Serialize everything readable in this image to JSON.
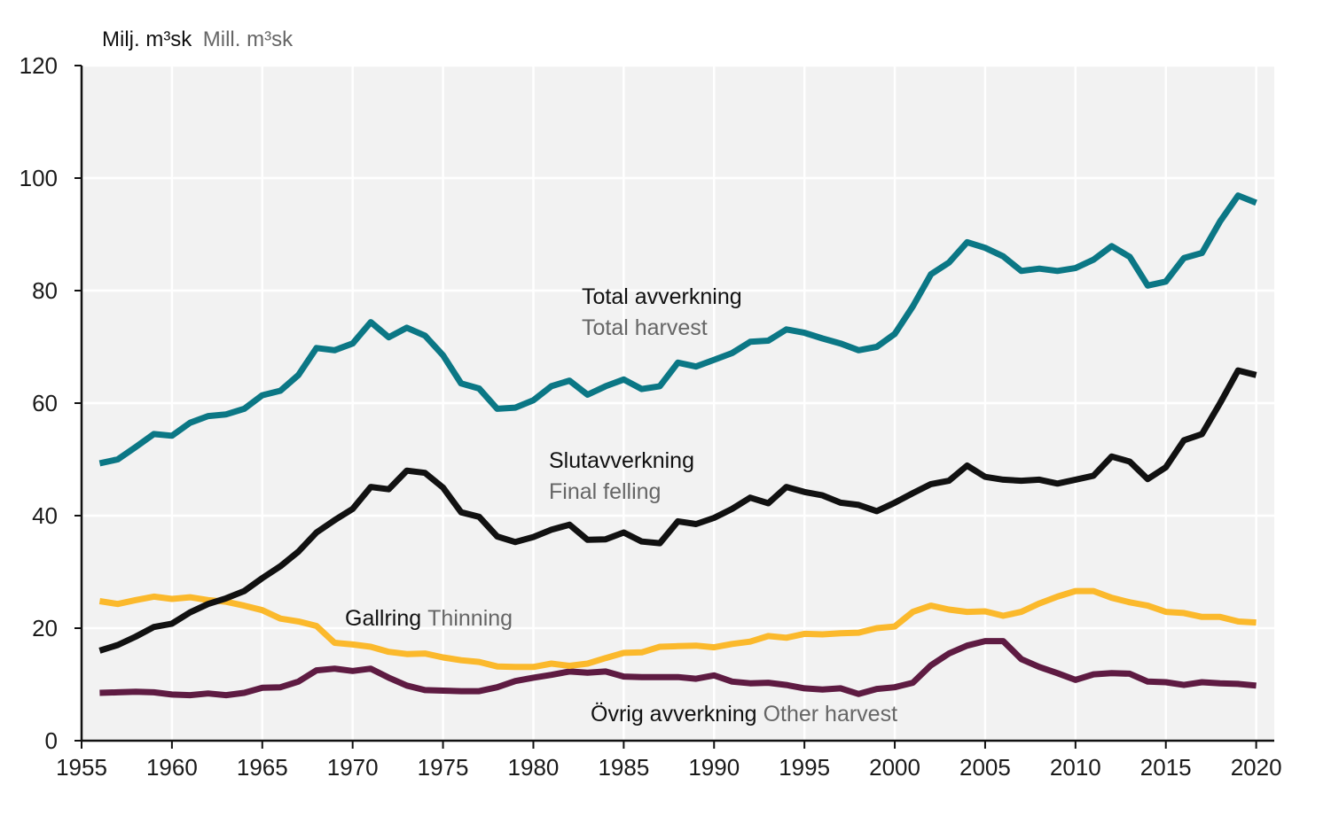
{
  "chart_data": {
    "type": "line",
    "ylabel": "Milj. m³sk",
    "ylabel_secondary": "Mill. m³sk",
    "xlim": [
      1955,
      2021
    ],
    "ylim": [
      0,
      120
    ],
    "x_ticks": [
      1955,
      1960,
      1965,
      1970,
      1975,
      1980,
      1985,
      1990,
      1995,
      2000,
      2005,
      2010,
      2015,
      2020
    ],
    "y_ticks": [
      0,
      20,
      40,
      60,
      80,
      100,
      120
    ],
    "grid": true,
    "background": "#f2f2f2",
    "x": [
      1956,
      1957,
      1958,
      1959,
      1960,
      1961,
      1962,
      1963,
      1964,
      1965,
      1966,
      1967,
      1968,
      1969,
      1970,
      1971,
      1972,
      1973,
      1974,
      1975,
      1976,
      1977,
      1978,
      1979,
      1980,
      1981,
      1982,
      1983,
      1984,
      1985,
      1986,
      1987,
      1988,
      1989,
      1990,
      1991,
      1992,
      1993,
      1994,
      1995,
      1996,
      1997,
      1998,
      1999,
      2000,
      2001,
      2002,
      2003,
      2004,
      2005,
      2006,
      2007,
      2008,
      2009,
      2010,
      2011,
      2012,
      2013,
      2014,
      2015,
      2016,
      2017,
      2018,
      2019,
      2020
    ],
    "series": [
      {
        "name": "Total avverkning",
        "name_secondary": "Total harvest",
        "color": "#0b7785",
        "values": [
          49.3,
          50.0,
          52.2,
          54.5,
          54.2,
          56.5,
          57.7,
          58.0,
          59.0,
          61.4,
          62.2,
          65.0,
          69.8,
          69.4,
          70.6,
          74.4,
          71.7,
          73.4,
          72.0,
          68.5,
          63.5,
          62.6,
          59.0,
          59.2,
          60.5,
          63.0,
          64.0,
          61.5,
          63.0,
          64.2,
          62.5,
          63.0,
          67.2,
          66.5,
          67.7,
          68.9,
          70.9,
          71.1,
          73.1,
          72.5,
          71.5,
          70.6,
          69.4,
          70.0,
          72.3,
          77.2,
          82.9,
          85.0,
          88.6,
          87.6,
          86.1,
          83.5,
          83.9,
          83.5,
          84.0,
          85.5,
          87.9,
          86.0,
          80.9,
          81.6,
          85.8,
          86.7,
          92.3,
          96.9,
          95.6
        ]
      },
      {
        "name": "Slutavverkning",
        "name_secondary": "Final felling",
        "color": "#111111",
        "values": [
          16.0,
          17.0,
          18.5,
          20.2,
          20.8,
          22.8,
          24.3,
          25.3,
          26.6,
          28.9,
          31.0,
          33.6,
          37.0,
          39.2,
          41.2,
          45.1,
          44.7,
          48.0,
          47.6,
          45.0,
          40.6,
          39.8,
          36.3,
          35.3,
          36.2,
          37.5,
          38.4,
          35.7,
          35.8,
          37.0,
          35.4,
          35.1,
          39.0,
          38.5,
          39.6,
          41.2,
          43.2,
          42.2,
          45.1,
          44.2,
          43.6,
          42.3,
          41.9,
          40.8,
          42.3,
          44.0,
          45.6,
          46.2,
          48.9,
          46.9,
          46.4,
          46.2,
          46.4,
          45.7,
          46.4,
          47.1,
          50.5,
          49.6,
          46.5,
          48.6,
          53.4,
          54.5,
          60.0,
          65.8,
          65.0
        ]
      },
      {
        "name": "Gallring",
        "name_secondary": "Thinning",
        "color": "#fbb92c",
        "values": [
          24.8,
          24.3,
          25.0,
          25.6,
          25.2,
          25.5,
          25.0,
          24.7,
          24.0,
          23.2,
          21.7,
          21.2,
          20.4,
          17.4,
          17.1,
          16.7,
          15.8,
          15.4,
          15.5,
          14.8,
          14.3,
          14.0,
          13.2,
          13.1,
          13.1,
          13.7,
          13.3,
          13.7,
          14.7,
          15.6,
          15.7,
          16.7,
          16.8,
          16.9,
          16.6,
          17.2,
          17.6,
          18.6,
          18.3,
          19.0,
          18.9,
          19.1,
          19.2,
          20.0,
          20.3,
          22.9,
          24.0,
          23.3,
          22.9,
          23.0,
          22.2,
          22.9,
          24.4,
          25.6,
          26.6,
          26.6,
          25.4,
          24.6,
          24.0,
          22.9,
          22.7,
          22.0,
          22.0,
          21.2,
          21.0
        ]
      },
      {
        "name": "Övrig avverkning",
        "name_secondary": "Other harvest",
        "color": "#5e1b42",
        "values": [
          8.5,
          8.6,
          8.7,
          8.6,
          8.2,
          8.1,
          8.4,
          8.1,
          8.5,
          9.4,
          9.5,
          10.5,
          12.5,
          12.8,
          12.4,
          12.8,
          11.2,
          9.8,
          9.0,
          8.9,
          8.8,
          8.8,
          9.5,
          10.6,
          11.2,
          11.7,
          12.3,
          12.1,
          12.3,
          11.4,
          11.3,
          11.3,
          11.3,
          11.0,
          11.6,
          10.5,
          10.2,
          10.3,
          9.9,
          9.3,
          9.1,
          9.3,
          8.3,
          9.2,
          9.5,
          10.3,
          13.4,
          15.5,
          16.9,
          17.7,
          17.7,
          14.5,
          13.1,
          12.0,
          10.8,
          11.8,
          12.0,
          11.9,
          10.5,
          10.4,
          9.9,
          10.4,
          10.2,
          10.1,
          9.8
        ]
      }
    ]
  }
}
